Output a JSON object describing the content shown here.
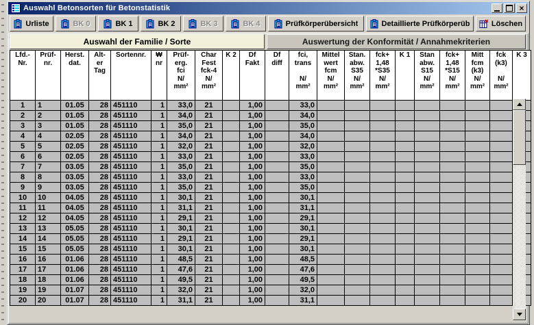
{
  "window": {
    "title": "Auswahl Betonsorten für Betonstatistik",
    "controls": [
      "minimize",
      "maximize",
      "close"
    ]
  },
  "toolbar": {
    "buttons": [
      {
        "label": "Urliste",
        "icon": "clipboard-icon",
        "enabled": true
      },
      {
        "label": "BK 0",
        "icon": "clipboard-icon",
        "enabled": false
      },
      {
        "label": "BK 1",
        "icon": "clipboard-icon",
        "enabled": true
      },
      {
        "label": "BK 2",
        "icon": "clipboard-icon",
        "enabled": true
      },
      {
        "label": "BK 3",
        "icon": "clipboard-icon",
        "enabled": false
      },
      {
        "label": "BK 4",
        "icon": "clipboard-icon",
        "enabled": false
      },
      {
        "label": "Prüfkörperübersicht",
        "icon": "clipboard-icon",
        "enabled": true
      },
      {
        "label": "Detaillierte Prüfkörperüb",
        "icon": "clipboard-icon",
        "enabled": true
      },
      {
        "label": "Löschen",
        "icon": "delete-grid-icon",
        "enabled": true
      }
    ]
  },
  "tabs": [
    {
      "label": "Auswahl der Familie / Sorte",
      "active": true
    },
    {
      "label": "Auswertung der Konformität / Annahmekriterien",
      "active": false
    }
  ],
  "table": {
    "headers": [
      "Lfd.-\nNr.",
      "Prüf-\nnr.",
      "Herst.\ndat.",
      "Alt-\ner\nTag",
      "Sortennr.",
      "₩\nnr",
      "Prüf-\nerg.\nfci\nN/\nmm²",
      "Char\nFest\nfck-4\nN/\nmm²",
      "K 2",
      "Df\nFakt",
      "Df\ndiff",
      "fci,\ntrans\n\nN/\nmm²",
      "Mittel\nwert\nfcm\nN/\nmm²",
      "Stan.\nabw.\nS35\nN/\nmm²",
      "fck+\n1,48\n*S35\nN/\nmm²",
      "K 1",
      "Stan\nabw.\nS15\nN/\nmm²",
      "fck+\n1,48\n*S15\nN/\nmm²",
      "Mitt\nfcm\n(k3)\nN/\nmm²",
      "fck\n(k3)\n\nN/\nmm²",
      "K 3"
    ],
    "rows": [
      [
        "1",
        "1",
        "01.05",
        "28",
        "451110",
        "1",
        "33,0",
        "21",
        "",
        "1,00",
        "",
        "33,0"
      ],
      [
        "2",
        "2",
        "01.05",
        "28",
        "451110",
        "1",
        "34,0",
        "21",
        "",
        "1,00",
        "",
        "34,0"
      ],
      [
        "3",
        "3",
        "01.05",
        "28",
        "451110",
        "1",
        "35,0",
        "21",
        "",
        "1,00",
        "",
        "35,0"
      ],
      [
        "4",
        "4",
        "02.05",
        "28",
        "451110",
        "1",
        "34,0",
        "21",
        "",
        "1,00",
        "",
        "34,0"
      ],
      [
        "5",
        "5",
        "02.05",
        "28",
        "451110",
        "1",
        "32,0",
        "21",
        "",
        "1,00",
        "",
        "32,0"
      ],
      [
        "6",
        "6",
        "02.05",
        "28",
        "451110",
        "1",
        "33,0",
        "21",
        "",
        "1,00",
        "",
        "33,0"
      ],
      [
        "7",
        "7",
        "03.05",
        "28",
        "451110",
        "1",
        "35,0",
        "21",
        "",
        "1,00",
        "",
        "35,0"
      ],
      [
        "8",
        "8",
        "03.05",
        "28",
        "451110",
        "1",
        "33,0",
        "21",
        "",
        "1,00",
        "",
        "33,0"
      ],
      [
        "9",
        "9",
        "03.05",
        "28",
        "451110",
        "1",
        "35,0",
        "21",
        "",
        "1,00",
        "",
        "35,0"
      ],
      [
        "10",
        "10",
        "04.05",
        "28",
        "451110",
        "1",
        "30,1",
        "21",
        "",
        "1,00",
        "",
        "30,1"
      ],
      [
        "11",
        "11",
        "04.05",
        "28",
        "451110",
        "1",
        "31,1",
        "21",
        "",
        "1,00",
        "",
        "31,1"
      ],
      [
        "12",
        "12",
        "04.05",
        "28",
        "451110",
        "1",
        "29,1",
        "21",
        "",
        "1,00",
        "",
        "29,1"
      ],
      [
        "13",
        "13",
        "05.05",
        "28",
        "451110",
        "1",
        "30,1",
        "21",
        "",
        "1,00",
        "",
        "30,1"
      ],
      [
        "14",
        "14",
        "05.05",
        "28",
        "451110",
        "1",
        "29,1",
        "21",
        "",
        "1,00",
        "",
        "29,1"
      ],
      [
        "15",
        "15",
        "05.05",
        "28",
        "451110",
        "1",
        "30,1",
        "21",
        "",
        "1,00",
        "",
        "30,1"
      ],
      [
        "16",
        "16",
        "01.06",
        "28",
        "451110",
        "1",
        "48,5",
        "21",
        "",
        "1,00",
        "",
        "48,5"
      ],
      [
        "17",
        "17",
        "01.06",
        "28",
        "451110",
        "1",
        "47,6",
        "21",
        "",
        "1,00",
        "",
        "47,6"
      ],
      [
        "18",
        "18",
        "01.06",
        "28",
        "451110",
        "1",
        "49,5",
        "21",
        "",
        "1,00",
        "",
        "49,5"
      ],
      [
        "19",
        "19",
        "01.07",
        "28",
        "451110",
        "1",
        "32,0",
        "21",
        "",
        "1,00",
        "",
        "32,0"
      ],
      [
        "20",
        "20",
        "01.07",
        "28",
        "451110",
        "1",
        "31,1",
        "21",
        "",
        "1,00",
        "",
        "31,1"
      ]
    ]
  },
  "colors": {
    "titlebar_gradient_start": "#0A246A",
    "titlebar_gradient_end": "#A6CAF0",
    "chrome": "#D4D0C8",
    "tab_active_bg": "#F2EFDB",
    "tab_inactive_bg": "#C9C5BC",
    "grid_header_bg": "#FFFFFF",
    "grid_row_bg": "#BEBEBE",
    "icon_cyan": "#00CDEB",
    "icon_navy": "#000080",
    "delete_red": "#D00000"
  }
}
